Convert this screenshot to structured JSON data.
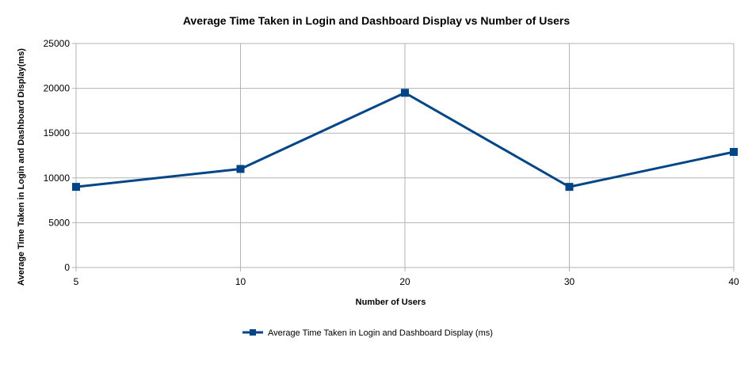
{
  "chart_data": {
    "type": "line",
    "title": "Average Time Taken in Login and Dashboard Display vs Number of Users",
    "xlabel": "Number of Users",
    "ylabel": "Average Time Taken in Login and Dashboard Display(ms)",
    "categories": [
      "5",
      "10",
      "20",
      "30",
      "40"
    ],
    "yticks": [
      "0",
      "5000",
      "10000",
      "15000",
      "20000",
      "25000"
    ],
    "ylim": [
      0,
      25000
    ],
    "grid": true,
    "legend_position": "bottom-center",
    "series": [
      {
        "name": "Average Time Taken in Login and Dashboard Display (ms)",
        "values": [
          9000,
          11000,
          19500,
          9000,
          12900
        ],
        "color": "#004586"
      }
    ]
  }
}
